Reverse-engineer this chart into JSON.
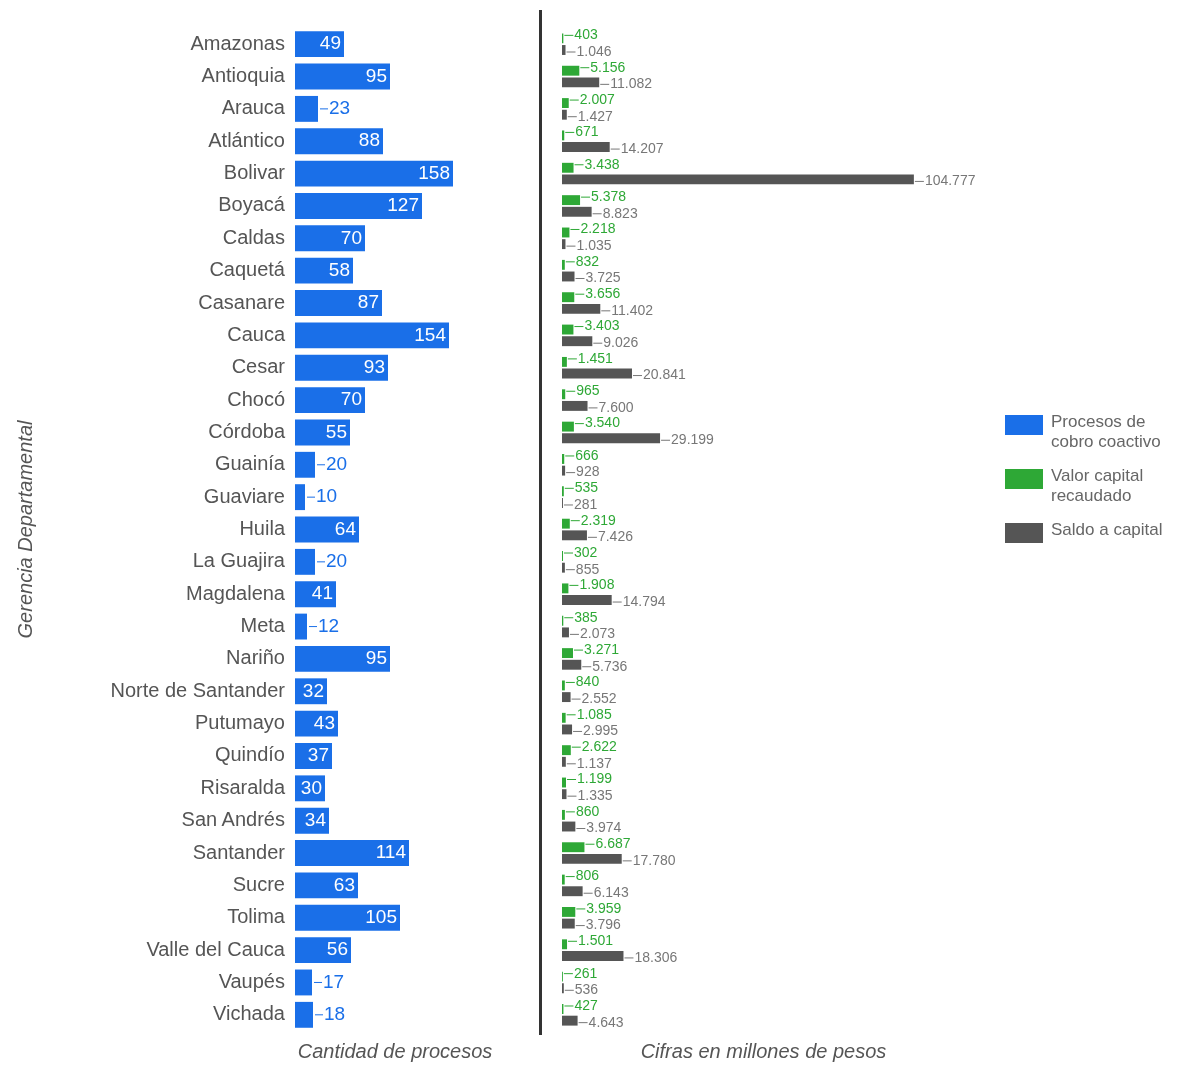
{
  "chart_data": [
    {
      "type": "bar",
      "orientation": "horizontal",
      "ylabel": "Gerencia Departamental",
      "xlabel": "Cantidad de procesos",
      "categories": [
        "Amazonas",
        "Antioquia",
        "Arauca",
        "Atlántico",
        "Bolivar",
        "Boyacá",
        "Caldas",
        "Caquetá",
        "Casanare",
        "Cauca",
        "Cesar",
        "Chocó",
        "Córdoba",
        "Guainía",
        "Guaviare",
        "Huila",
        "La Guajira",
        "Magdalena",
        "Meta",
        "Nariño",
        "Norte de Santander",
        "Putumayo",
        "Quindío",
        "Risaralda",
        "San Andrés",
        "Santander",
        "Sucre",
        "Tolima",
        "Valle del Cauca",
        "Vaupés",
        "Vichada"
      ],
      "series": [
        {
          "name": "Procesos de cobro coactivo",
          "color": "#1a6fe8",
          "values": [
            49,
            95,
            23,
            88,
            158,
            127,
            70,
            58,
            87,
            154,
            93,
            70,
            55,
            20,
            10,
            64,
            20,
            41,
            12,
            95,
            32,
            43,
            37,
            30,
            34,
            114,
            63,
            105,
            56,
            17,
            18
          ]
        }
      ],
      "data_labels": true,
      "tick_labels": "y",
      "legend": "right"
    },
    {
      "type": "bar",
      "orientation": "horizontal",
      "xlabel": "Cifras en millones de pesos",
      "categories": [
        null,
        null,
        null,
        null,
        null,
        null,
        null,
        null,
        null,
        null,
        null,
        null,
        null,
        null,
        null,
        null,
        null,
        null,
        null,
        null,
        null,
        null,
        null,
        null,
        null,
        null,
        null,
        null,
        null,
        null,
        null
      ],
      "series": [
        {
          "name": "Valor capital recaudado",
          "color": "#2ea836",
          "values": [
            403,
            5156,
            2007,
            671,
            3438,
            5378,
            2218,
            832,
            3656,
            3403,
            1451,
            965,
            3540,
            666,
            535,
            2319,
            302,
            1908,
            385,
            3271,
            840,
            1085,
            2622,
            1199,
            860,
            6687,
            806,
            3959,
            1501,
            261,
            427
          ],
          "value_labels": [
            "403",
            "5.156",
            "2.007",
            "671",
            "3.438",
            "5.378",
            "2.218",
            "832",
            "3.656",
            "3.403",
            "1.451",
            "965",
            "3.540",
            "666",
            "535",
            "2.319",
            "302",
            "1.908",
            "385",
            "3.271",
            "840",
            "1.085",
            "2.622",
            "1.199",
            "860",
            "6.687",
            "806",
            "3.959",
            "1.501",
            "261",
            "427"
          ]
        },
        {
          "name": "Saldo a capital",
          "color": "#555555",
          "values": [
            1046,
            11082,
            1427,
            14207,
            104777,
            8823,
            1035,
            3725,
            11402,
            9026,
            20841,
            7600,
            29199,
            928,
            281,
            7426,
            855,
            14794,
            2073,
            5736,
            2552,
            2995,
            1137,
            1335,
            3974,
            17780,
            6143,
            3796,
            18306,
            536,
            4643
          ],
          "value_labels": [
            "1.046",
            "11.082",
            "1.427",
            "14.207",
            "104.777",
            "8.823",
            "1.035",
            "3.725",
            "11.402",
            "9.026",
            "20.841",
            "7.600",
            "29.199",
            "928",
            "281",
            "7.426",
            "855",
            "14.794",
            "2.073",
            "5.736",
            "2.552",
            "2.995",
            "1.137",
            "1.335",
            "3.974",
            "17.780",
            "6.143",
            "3.796",
            "18.306",
            "536",
            "4.643"
          ]
        }
      ],
      "tick_labels": false,
      "legend": "right"
    }
  ]
}
